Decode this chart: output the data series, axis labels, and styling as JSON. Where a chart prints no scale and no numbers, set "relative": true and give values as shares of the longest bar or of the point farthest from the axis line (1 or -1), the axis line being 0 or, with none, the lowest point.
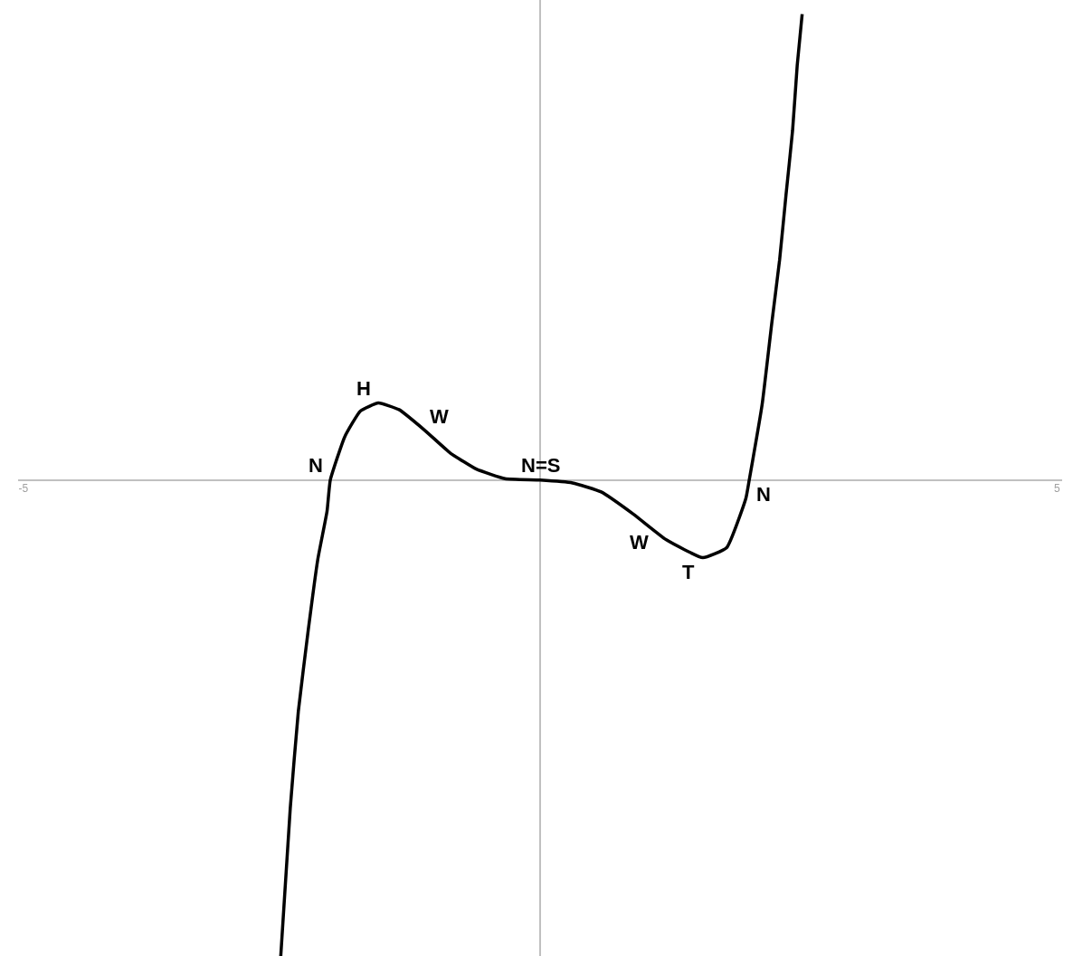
{
  "chart_data": {
    "type": "line",
    "relative": true,
    "color": "#000000",
    "grid": false,
    "marker": "none",
    "line_style": "solid",
    "xlim": [
      -5.05,
      5.05
    ],
    "xticks": [
      -5,
      5
    ],
    "x": [
      -2.509,
      -2.417,
      -2.339,
      -2.243,
      -2.151,
      -2.061,
      -2.03,
      -1.89,
      -1.739,
      -1.565,
      -1.365,
      -1.113,
      -0.87,
      -0.617,
      -0.339,
      0,
      0.313,
      0.591,
      0.904,
      1.217,
      1.574,
      1.805,
      1.991,
      2.023,
      2.148,
      2.24,
      2.317,
      2.379,
      2.442,
      2.487,
      2.535
    ],
    "values": [
      -1,
      -0.689,
      -0.486,
      -0.315,
      -0.167,
      -0.065,
      0,
      0.091,
      0.145,
      0.162,
      0.148,
      0.104,
      0.057,
      0.023,
      0.003,
      0,
      -0.006,
      -0.025,
      -0.072,
      -0.125,
      -0.163,
      -0.142,
      -0.038,
      0,
      0.159,
      0.328,
      0.463,
      0.6,
      0.734,
      0.871,
      0.979
    ],
    "annotations": [
      {
        "text": "N",
        "x": -2.03,
        "y": 0
      },
      {
        "text": "H",
        "x": -1.565,
        "y": 0.162
      },
      {
        "text": "W",
        "x": -1.113,
        "y": 0.104
      },
      {
        "text": "N=S",
        "x": 0,
        "y": 0
      },
      {
        "text": "W",
        "x": 1.1,
        "y": -0.1
      },
      {
        "text": "T",
        "x": 1.574,
        "y": -0.163
      },
      {
        "text": "N",
        "x": 2.023,
        "y": 0
      }
    ]
  }
}
